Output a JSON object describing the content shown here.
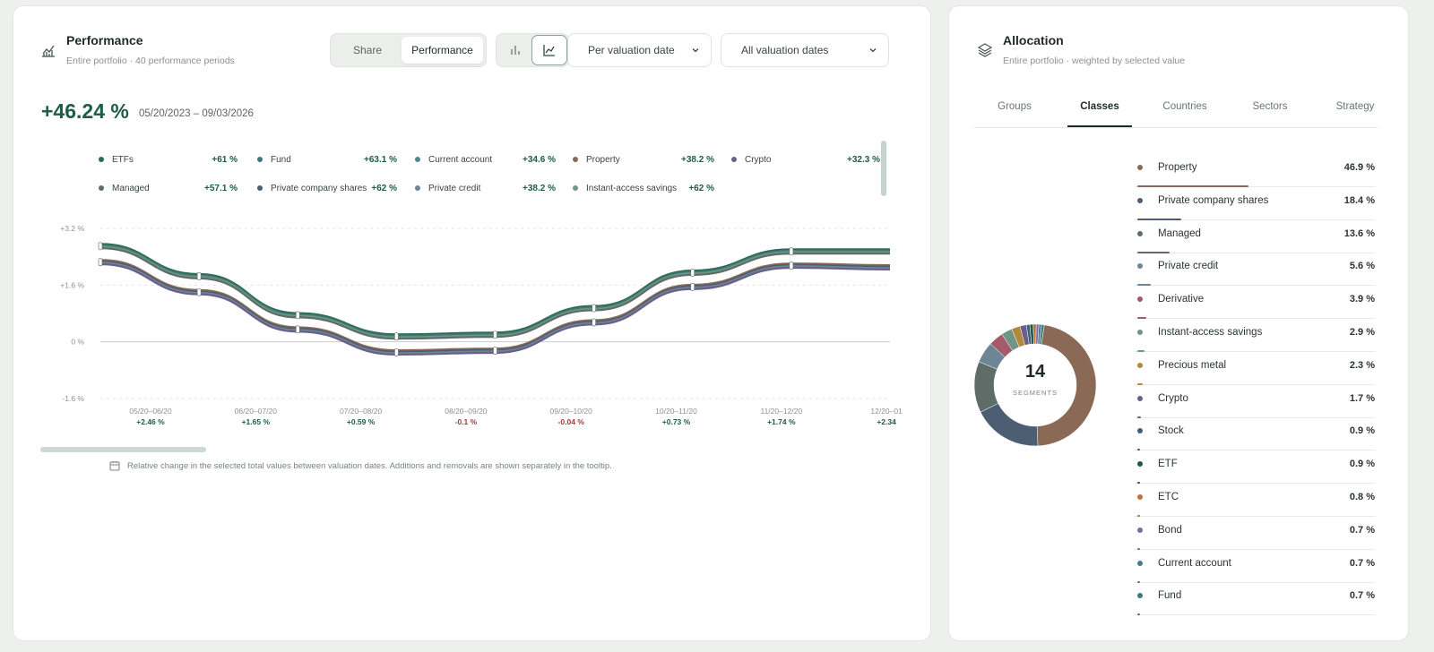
{
  "performance": {
    "title": "Performance",
    "subtitle": "Entire portfolio · 40 performance periods",
    "toggle": {
      "share_label": "Share",
      "performance_label": "Performance",
      "active": "performance"
    },
    "view_buttons": [
      {
        "icon": "bar-chart-icon",
        "active": false
      },
      {
        "icon": "line-chart-icon",
        "active": true
      }
    ],
    "dropdown_mode": "Per valuation date",
    "dropdown_dates": "All valuation dates",
    "total_change": "+46.24 %",
    "date_range": "05/20/2023 – 09/03/2026",
    "legend": [
      {
        "name": "ETFs",
        "value": "+61 %",
        "color": "#2f6b52"
      },
      {
        "name": "Fund",
        "value": "+63.1 %",
        "color": "#3c7a78"
      },
      {
        "name": "Current account",
        "value": "+34.6 %",
        "color": "#4b8a86"
      },
      {
        "name": "Property",
        "value": "+38.2 %",
        "color": "#8a6a57"
      },
      {
        "name": "Crypto",
        "value": "+32.3 %",
        "color": "#6a5f8a"
      },
      {
        "name": "Managed",
        "value": "+57.1 %",
        "color": "#5e6d68"
      },
      {
        "name": "Private company shares",
        "value": "+62 %",
        "color": "#4d5e73"
      },
      {
        "name": "Private credit",
        "value": "+38.2 %",
        "color": "#6d8594"
      },
      {
        "name": "Instant-access savings",
        "value": "+62 %",
        "color": "#6f9589"
      }
    ],
    "footnote": "Relative change in the selected total values between valuation dates. Additions and removals are shown separately in the tooltip."
  },
  "chart_data": {
    "type": "line",
    "y_ticks": [
      "+3.2 %",
      "+1.6 %",
      "0 %",
      "-1.6 %"
    ],
    "ylim": [
      -1.6,
      3.2
    ],
    "grid": true,
    "categories": [
      "05/20–06/20",
      "06/20–07/20",
      "07/20–08/20",
      "08/20–09/20",
      "09/20–10/20",
      "10/20–11/20",
      "11/20–12/20",
      "12/20–01"
    ],
    "period_values": [
      "+2.46 %",
      "+1.65 %",
      "+0.59 %",
      "-0.1 %",
      "-0.04 %",
      "+0.73 %",
      "+1.74 %",
      "+2.34"
    ],
    "series_upper": {
      "colors": [
        "#2f6b52",
        "#3c7a78",
        "#6f9589",
        "#5e6d68"
      ],
      "values": [
        2.7,
        1.85,
        0.75,
        0.15,
        0.2,
        0.95,
        1.95,
        2.55,
        2.55
      ]
    },
    "series_lower": {
      "colors": [
        "#8a6a57",
        "#4d5e73",
        "#6d8594",
        "#6a5f8a"
      ],
      "values": [
        2.25,
        1.4,
        0.35,
        -0.3,
        -0.25,
        0.55,
        1.55,
        2.15,
        2.1
      ]
    }
  },
  "allocation": {
    "title": "Allocation",
    "subtitle": "Entire portfolio · weighted by selected value",
    "tabs": [
      "Groups",
      "Classes",
      "Countries",
      "Sectors",
      "Strategy"
    ],
    "active_tab": "Classes",
    "segment_count": "14",
    "segment_label": "SEGMENTS",
    "classes": [
      {
        "name": "Property",
        "pct": "46.9 %",
        "share": 46.9,
        "color": "#8a6a57"
      },
      {
        "name": "Private company shares",
        "pct": "18.4 %",
        "share": 18.4,
        "color": "#4d5e73"
      },
      {
        "name": "Managed",
        "pct": "13.6 %",
        "share": 13.6,
        "color": "#5e6d68"
      },
      {
        "name": "Private credit",
        "pct": "5.6 %",
        "share": 5.6,
        "color": "#6d8594"
      },
      {
        "name": "Derivative",
        "pct": "3.9 %",
        "share": 3.9,
        "color": "#a35a6a"
      },
      {
        "name": "Instant-access savings",
        "pct": "2.9 %",
        "share": 2.9,
        "color": "#6f9589"
      },
      {
        "name": "Precious metal",
        "pct": "2.3 %",
        "share": 2.3,
        "color": "#b08a3a"
      },
      {
        "name": "Crypto",
        "pct": "1.7 %",
        "share": 1.7,
        "color": "#6a5f8a"
      },
      {
        "name": "Stock",
        "pct": "0.9 %",
        "share": 0.9,
        "color": "#3d5f80"
      },
      {
        "name": "ETF",
        "pct": "0.9 %",
        "share": 0.9,
        "color": "#1f5a45"
      },
      {
        "name": "ETC",
        "pct": "0.8 %",
        "share": 0.8,
        "color": "#c0703a"
      },
      {
        "name": "Bond",
        "pct": "0.7 %",
        "share": 0.7,
        "color": "#7a6aa0"
      },
      {
        "name": "Current account",
        "pct": "0.7 %",
        "share": 0.7,
        "color": "#4a7a90"
      },
      {
        "name": "Fund",
        "pct": "0.7 %",
        "share": 0.7,
        "color": "#3c7a78"
      }
    ]
  }
}
